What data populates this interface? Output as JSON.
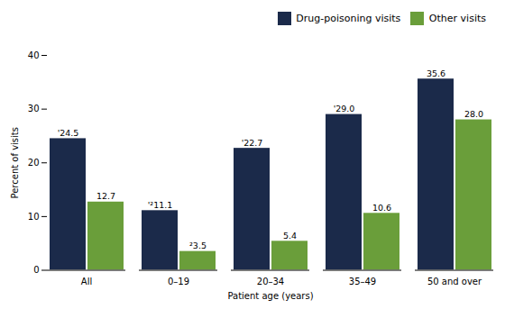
{
  "chart_data": {
    "type": "bar",
    "categories": [
      "All",
      "0–19",
      "20–34",
      "35–49",
      "50 and over"
    ],
    "series": [
      {
        "name": "Drug-poisoning visits",
        "color": "#1b2a4a",
        "values": [
          24.5,
          11.1,
          22.7,
          29.0,
          35.6
        ],
        "value_labels": [
          "'24.5",
          "'²11.1",
          "'22.7",
          "'29.0",
          "35.6"
        ]
      },
      {
        "name": "Other visits",
        "color": "#6a9e3a",
        "values": [
          12.7,
          3.5,
          5.4,
          10.6,
          28.0
        ],
        "value_labels": [
          "12.7",
          "²3.5",
          "5.4",
          "10.6",
          "28.0"
        ]
      }
    ],
    "xlabel": "Patient age (years)",
    "ylabel": "Percent of visits",
    "ylim": [
      0,
      40
    ],
    "yticks": [
      0,
      10,
      20,
      30,
      40
    ],
    "grid": false,
    "legend": "upper right",
    "data_labels": true
  }
}
